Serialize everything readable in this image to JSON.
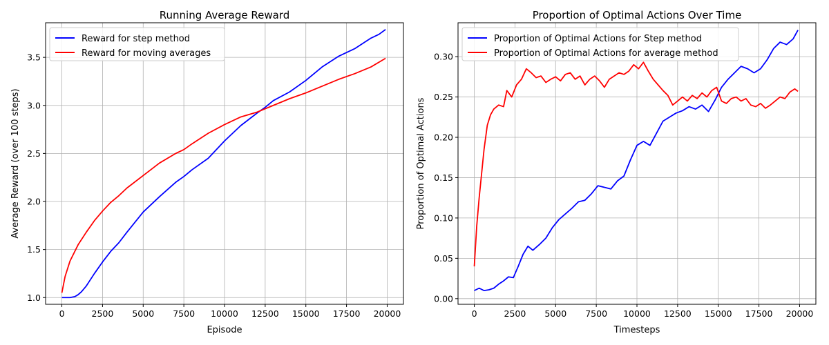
{
  "chart_data": [
    {
      "type": "line",
      "title": "Running Average Reward",
      "xlabel": "Episode",
      "ylabel": "Average Reward (over 100 steps)",
      "xlim": [
        -1000,
        21000
      ],
      "ylim": [
        0.93,
        3.86
      ],
      "xticks": [
        0,
        2500,
        5000,
        7500,
        10000,
        12500,
        15000,
        17500,
        20000
      ],
      "yticks": [
        1.0,
        1.5,
        2.0,
        2.5,
        3.0,
        3.5
      ],
      "ytick_format": 1,
      "grid": true,
      "legend": "upper-left",
      "series": [
        {
          "name": "Reward for step method",
          "color": "#0000ff",
          "x": [
            0,
            500,
            800,
            1000,
            1200,
            1500,
            2000,
            2500,
            3000,
            3500,
            4000,
            5000,
            6000,
            7000,
            7500,
            8000,
            9000,
            10000,
            11000,
            12000,
            12500,
            13000,
            14000,
            15000,
            16000,
            17000,
            18000,
            19000,
            19500,
            19900
          ],
          "y": [
            1.0,
            1.0,
            1.01,
            1.03,
            1.06,
            1.12,
            1.25,
            1.37,
            1.48,
            1.57,
            1.68,
            1.89,
            2.05,
            2.2,
            2.26,
            2.33,
            2.45,
            2.63,
            2.79,
            2.92,
            2.98,
            3.05,
            3.14,
            3.26,
            3.4,
            3.51,
            3.59,
            3.7,
            3.74,
            3.79
          ]
        },
        {
          "name": "Reward for moving averages",
          "color": "#ff0000",
          "x": [
            0,
            200,
            500,
            1000,
            1500,
            2000,
            2500,
            3000,
            3500,
            4000,
            5000,
            6000,
            7000,
            7500,
            8000,
            9000,
            10000,
            11000,
            12000,
            13000,
            14000,
            15000,
            16000,
            17000,
            18000,
            19000,
            19900
          ],
          "y": [
            1.05,
            1.22,
            1.38,
            1.55,
            1.68,
            1.8,
            1.9,
            1.99,
            2.06,
            2.14,
            2.27,
            2.4,
            2.5,
            2.54,
            2.6,
            2.71,
            2.8,
            2.88,
            2.93,
            3.0,
            3.07,
            3.13,
            3.2,
            3.27,
            3.33,
            3.4,
            3.49
          ]
        }
      ]
    },
    {
      "type": "line",
      "title": "Proportion of Optimal Actions Over Time",
      "xlabel": "Timesteps",
      "ylabel": "Proportion of Optimal Actions",
      "xlim": [
        -1000,
        21000
      ],
      "ylim": [
        -0.007,
        0.342
      ],
      "xticks": [
        0,
        2500,
        5000,
        7500,
        10000,
        12500,
        15000,
        17500,
        20000
      ],
      "yticks": [
        0.0,
        0.05,
        0.1,
        0.15,
        0.2,
        0.25,
        0.3
      ],
      "ytick_format": 2,
      "grid": true,
      "legend": "upper-left",
      "series": [
        {
          "name": "Proportion of Optimal Actions for Step method",
          "color": "#0000ff",
          "x": [
            0,
            300,
            600,
            900,
            1200,
            1500,
            1800,
            2100,
            2400,
            2700,
            3000,
            3300,
            3600,
            4000,
            4400,
            4800,
            5200,
            5600,
            6000,
            6400,
            6800,
            7200,
            7600,
            8000,
            8400,
            8800,
            9200,
            9600,
            10000,
            10400,
            10800,
            11200,
            11600,
            12000,
            12400,
            12800,
            13200,
            13600,
            14000,
            14400,
            14800,
            15200,
            15600,
            16000,
            16400,
            16800,
            17200,
            17600,
            18000,
            18400,
            18800,
            19200,
            19600,
            19900
          ],
          "y": [
            0.01,
            0.013,
            0.01,
            0.011,
            0.013,
            0.018,
            0.022,
            0.027,
            0.026,
            0.04,
            0.055,
            0.065,
            0.06,
            0.067,
            0.075,
            0.088,
            0.098,
            0.105,
            0.112,
            0.12,
            0.122,
            0.13,
            0.14,
            0.138,
            0.136,
            0.146,
            0.152,
            0.172,
            0.19,
            0.195,
            0.19,
            0.205,
            0.22,
            0.225,
            0.23,
            0.233,
            0.238,
            0.235,
            0.24,
            0.232,
            0.246,
            0.262,
            0.272,
            0.28,
            0.288,
            0.285,
            0.28,
            0.285,
            0.296,
            0.31,
            0.318,
            0.315,
            0.322,
            0.333
          ]
        },
        {
          "name": "Proportion of Optimal Actions for average method",
          "color": "#ff0000",
          "x": [
            0,
            150,
            300,
            450,
            600,
            800,
            1000,
            1200,
            1500,
            1800,
            2000,
            2300,
            2600,
            2900,
            3200,
            3500,
            3800,
            4100,
            4400,
            4700,
            5000,
            5300,
            5600,
            5900,
            6200,
            6500,
            6800,
            7100,
            7400,
            7700,
            8000,
            8300,
            8600,
            8900,
            9200,
            9500,
            9800,
            10100,
            10400,
            10700,
            11000,
            11300,
            11600,
            11900,
            12200,
            12500,
            12800,
            13100,
            13400,
            13700,
            14000,
            14300,
            14600,
            14900,
            15200,
            15500,
            15800,
            16100,
            16400,
            16700,
            17000,
            17300,
            17600,
            17900,
            18200,
            18500,
            18800,
            19100,
            19400,
            19700,
            19900
          ],
          "y": [
            0.04,
            0.09,
            0.125,
            0.155,
            0.185,
            0.215,
            0.228,
            0.235,
            0.24,
            0.238,
            0.258,
            0.25,
            0.265,
            0.272,
            0.285,
            0.28,
            0.274,
            0.276,
            0.268,
            0.272,
            0.275,
            0.27,
            0.278,
            0.28,
            0.272,
            0.276,
            0.265,
            0.272,
            0.276,
            0.27,
            0.262,
            0.272,
            0.276,
            0.28,
            0.278,
            0.282,
            0.29,
            0.285,
            0.293,
            0.282,
            0.272,
            0.265,
            0.258,
            0.252,
            0.24,
            0.245,
            0.25,
            0.245,
            0.252,
            0.248,
            0.255,
            0.25,
            0.258,
            0.262,
            0.245,
            0.242,
            0.248,
            0.25,
            0.245,
            0.248,
            0.24,
            0.238,
            0.242,
            0.236,
            0.24,
            0.245,
            0.25,
            0.248,
            0.256,
            0.26,
            0.257
          ]
        }
      ]
    }
  ]
}
